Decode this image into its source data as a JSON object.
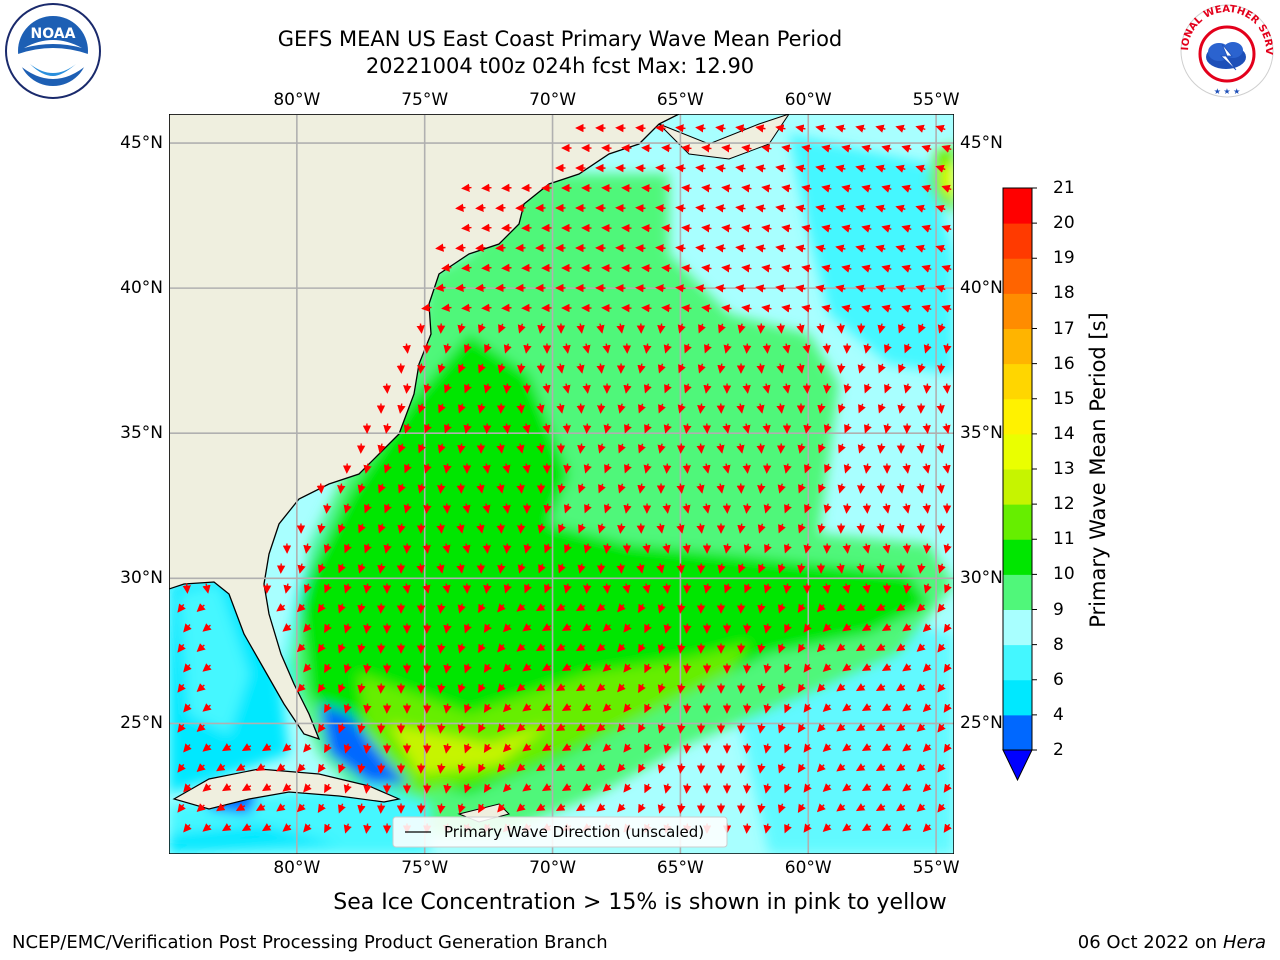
{
  "title": {
    "line1": "GEFS MEAN US East Coast Primary Wave Mean Period",
    "line2": "20221004 t00z 024h fcst   Max: 12.90"
  },
  "logos": {
    "noaa": {
      "text": "NOAA",
      "ring_text": "NATIONAL OCEANIC AND ATMOSPHERIC ADMINISTRATION · U.S. DEPARTMENT OF COMMERCE"
    },
    "nws": {
      "ring_text": "NATIONAL WEATHER SERVICE"
    }
  },
  "map": {
    "lon_labels": [
      "80°W",
      "75°W",
      "70°W",
      "65°W",
      "60°W",
      "55°W"
    ],
    "lat_labels": [
      "45°N",
      "40°N",
      "35°N",
      "30°N",
      "25°N"
    ],
    "lon_values": [
      -80,
      -75,
      -70,
      -65,
      -60,
      -55
    ],
    "lat_values": [
      45,
      40,
      35,
      30,
      25
    ],
    "extent": {
      "lon_min": -85,
      "lon_max": -54.3,
      "lat_min": 20.5,
      "lat_max": 46.0
    },
    "legend_label": "Primary Wave Direction (unscaled)",
    "colors": {
      "land": "#efefdf",
      "grid": "#b0b0b0",
      "arrow": "#ff0000"
    }
  },
  "colorbar": {
    "title": "Primary Wave Mean Period [s]",
    "ticks": [
      "2",
      "4",
      "6",
      "8",
      "9",
      "10",
      "11",
      "12",
      "13",
      "14",
      "15",
      "16",
      "17",
      "18",
      "19",
      "20",
      "21"
    ],
    "colors": [
      "#0068ff",
      "#00e8ff",
      "#44f7ff",
      "#a8ffff",
      "#50f77a",
      "#00e600",
      "#66ee00",
      "#c6f400",
      "#eaff00",
      "#fff200",
      "#ffd600",
      "#ffb400",
      "#ff8c00",
      "#ff6400",
      "#ff3a00",
      "#ff0000"
    ],
    "under_color": "#0000ff"
  },
  "caption": "Sea Ice Concentration > 15% is shown in pink to yellow",
  "footer": {
    "left": "NCEP/EMC/Verification Post Processing Product Generation Branch",
    "right_date": "06 Oct 2022 on",
    "right_host": "Hera"
  }
}
